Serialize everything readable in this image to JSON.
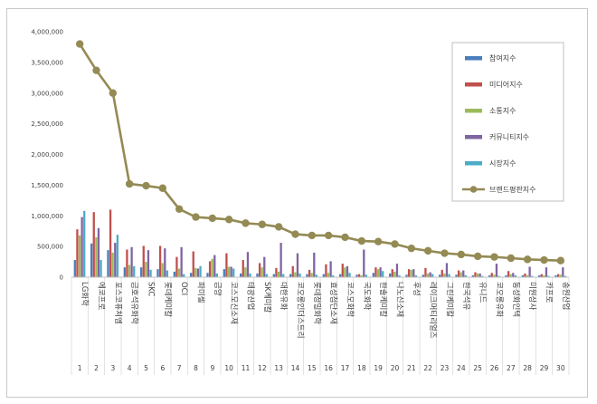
{
  "chart_data": {
    "type": "bar",
    "y_ticks": [
      "0",
      "500,000",
      "1,000,000",
      "1,500,000",
      "2,000,000",
      "2,500,000",
      "3,000,000",
      "3,500,000",
      "4,000,000"
    ],
    "ylim": [
      0,
      4000000
    ],
    "grid": false,
    "legend_position": "right",
    "ranks": [
      "1",
      "2",
      "3",
      "4",
      "5",
      "6",
      "7",
      "8",
      "9",
      "10",
      "11",
      "12",
      "13",
      "14",
      "15",
      "16",
      "17",
      "18",
      "19",
      "20",
      "21",
      "22",
      "23",
      "24",
      "25",
      "26",
      "27",
      "28",
      "29",
      "30"
    ],
    "categories": [
      "LG화학",
      "에코프로",
      "포스코퓨처엠",
      "금호석유화학",
      "SKC",
      "롯데케미칼",
      "OCI",
      "파미셀",
      "금양",
      "코스모신소재",
      "태광산업",
      "SK케미칼",
      "대한유화",
      "코오롱인더스트리",
      "롯데정밀화학",
      "효성첨단소재",
      "코스모화학",
      "국도화학",
      "한솔케미칼",
      "나노신소재",
      "후성",
      "레이크머티리얼즈",
      "그린케미칼",
      "한국석유",
      "유니드",
      "코오롱유화",
      "동성화인텍",
      "미원상사",
      "카프로",
      "송원산업"
    ],
    "series": [
      {
        "name": "참여지수",
        "color": "#4a7ebb",
        "kind": "bar",
        "values": [
          280000,
          550000,
          440000,
          160000,
          160000,
          130000,
          90000,
          70000,
          70000,
          130000,
          60000,
          60000,
          50000,
          50000,
          50000,
          50000,
          50000,
          40000,
          70000,
          60000,
          40000,
          40000,
          40000,
          40000,
          30000,
          30000,
          30000,
          30000,
          30000,
          30000
        ]
      },
      {
        "name": "미디어지수",
        "color": "#c0504d",
        "kind": "bar",
        "values": [
          780000,
          1060000,
          1100000,
          450000,
          510000,
          510000,
          330000,
          420000,
          260000,
          390000,
          280000,
          230000,
          150000,
          180000,
          120000,
          210000,
          220000,
          50000,
          160000,
          130000,
          130000,
          150000,
          120000,
          110000,
          80000,
          70000,
          100000,
          60000,
          50000,
          50000
        ]
      },
      {
        "name": "소통지수",
        "color": "#9bbb59",
        "kind": "bar",
        "values": [
          680000,
          650000,
          400000,
          200000,
          250000,
          230000,
          140000,
          150000,
          300000,
          170000,
          160000,
          160000,
          90000,
          80000,
          70000,
          70000,
          160000,
          30000,
          130000,
          90000,
          120000,
          60000,
          60000,
          80000,
          60000,
          40000,
          50000,
          30000,
          30000,
          40000
        ]
      },
      {
        "name": "커뮤니티지수",
        "color": "#8064a2",
        "kind": "bar",
        "values": [
          980000,
          800000,
          560000,
          490000,
          440000,
          470000,
          490000,
          140000,
          360000,
          170000,
          410000,
          330000,
          560000,
          390000,
          400000,
          260000,
          180000,
          450000,
          160000,
          220000,
          130000,
          80000,
          230000,
          110000,
          60000,
          220000,
          70000,
          170000,
          160000,
          160000
        ]
      },
      {
        "name": "시장지수",
        "color": "#4bacc6",
        "kind": "bar",
        "values": [
          1080000,
          280000,
          690000,
          180000,
          120000,
          110000,
          50000,
          180000,
          60000,
          140000,
          60000,
          50000,
          50000,
          60000,
          40000,
          30000,
          70000,
          40000,
          100000,
          30000,
          30000,
          50000,
          50000,
          30000,
          20000,
          20000,
          30000,
          20000,
          20000,
          20000
        ]
      },
      {
        "name": "브랜드평판지수",
        "color": "#948a54",
        "kind": "line",
        "values": [
          3800000,
          3370000,
          3000000,
          1520000,
          1490000,
          1450000,
          1110000,
          980000,
          960000,
          940000,
          880000,
          860000,
          820000,
          700000,
          680000,
          680000,
          650000,
          590000,
          580000,
          540000,
          470000,
          430000,
          390000,
          370000,
          340000,
          330000,
          310000,
          290000,
          280000,
          270000
        ]
      }
    ]
  }
}
